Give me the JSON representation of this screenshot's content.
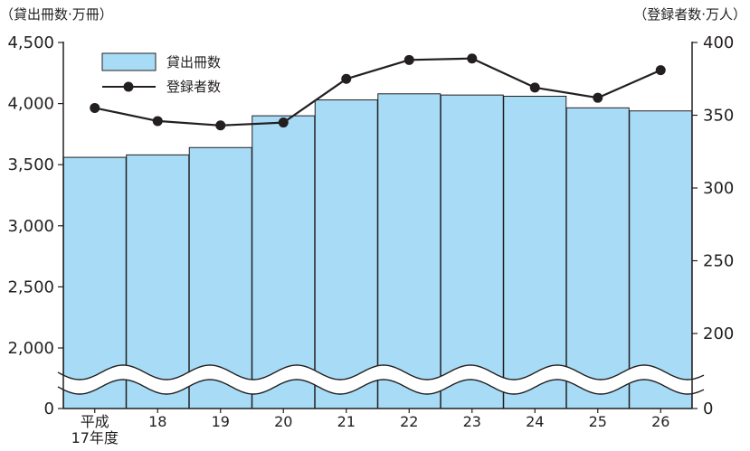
{
  "chart_data": {
    "type": "bar",
    "left_axis_unit": "（貸出冊数·万冊）",
    "right_axis_unit": "（登録者数·万人）",
    "categories": [
      "平成17年度",
      "18",
      "19",
      "20",
      "21",
      "22",
      "23",
      "24",
      "25",
      "26"
    ],
    "category_labels": [
      [
        "平成",
        "17年度"
      ],
      [
        "18"
      ],
      [
        "19"
      ],
      [
        "20"
      ],
      [
        "21"
      ],
      [
        "22"
      ],
      [
        "23"
      ],
      [
        "24"
      ],
      [
        "25"
      ],
      [
        "26"
      ]
    ],
    "series": [
      {
        "name": "貸出冊数",
        "type": "bar",
        "axis": "left",
        "color": "#a8dcf6",
        "values": [
          3560,
          3580,
          3640,
          3900,
          4030,
          4080,
          4070,
          4060,
          3965,
          3940
        ]
      },
      {
        "name": "登録者数",
        "type": "line",
        "axis": "right",
        "color": "#231f20",
        "values": [
          355,
          346,
          343,
          345,
          375,
          388,
          389,
          369,
          362,
          381
        ]
      }
    ],
    "left_axis": {
      "ticks": [
        0,
        2000,
        2500,
        3000,
        3500,
        4000,
        4500
      ],
      "tick_labels": [
        "0",
        "2,000",
        "2,500",
        "3,000",
        "3,500",
        "4,000",
        "4,500"
      ],
      "axis_break": true
    },
    "right_axis": {
      "ticks": [
        0,
        200,
        250,
        300,
        350,
        400
      ],
      "tick_labels": [
        "0",
        "200",
        "250",
        "300",
        "350",
        "400"
      ],
      "axis_break": true
    },
    "legend_position": "top-left",
    "grid": false
  }
}
